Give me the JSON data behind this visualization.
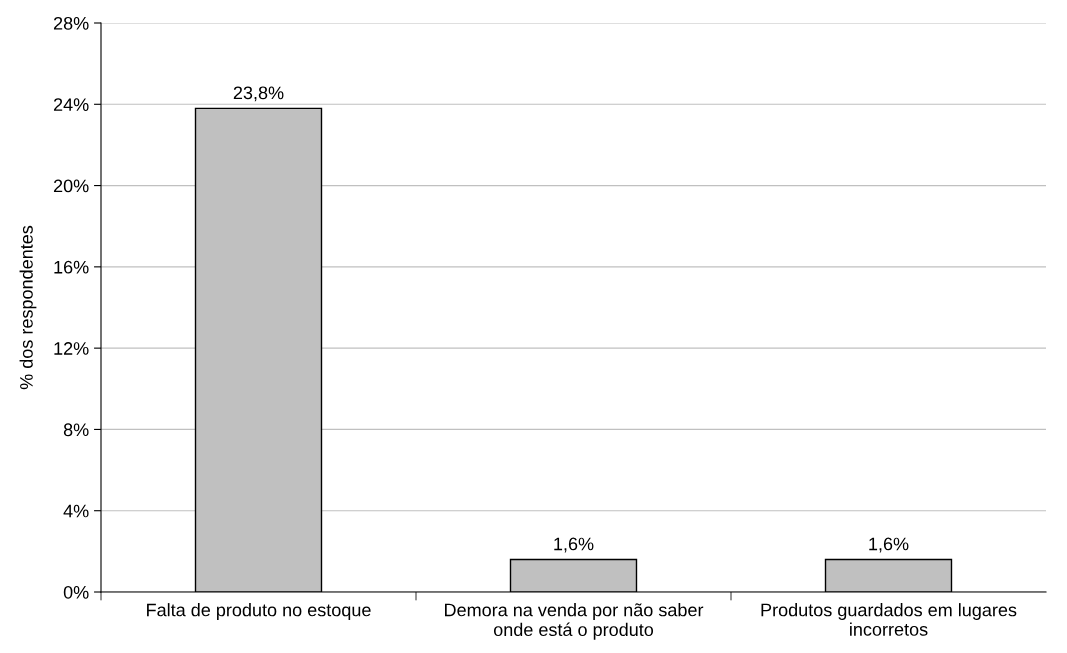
{
  "chart_data": {
    "type": "bar",
    "ylabel": "% dos respondentes",
    "categories": [
      "Falta de produto no estoque",
      "Demora na venda por não saber\nonde está o produto",
      "Produtos guardados em lugares\nincorretos"
    ],
    "values": [
      23.8,
      1.6,
      1.6
    ],
    "value_labels": [
      "23,8%",
      "1,6%",
      "1,6%"
    ],
    "color": "#c0c0c0",
    "ylim": [
      0,
      28
    ],
    "yticks": [
      {
        "value": 0,
        "label": "0%"
      },
      {
        "value": 4,
        "label": "4%"
      },
      {
        "value": 8,
        "label": "8%"
      },
      {
        "value": 12,
        "label": "12%"
      },
      {
        "value": 16,
        "label": "16%"
      },
      {
        "value": 20,
        "label": "20%"
      },
      {
        "value": 24,
        "label": "24%"
      },
      {
        "value": 28,
        "label": "28%"
      }
    ],
    "grid": "y"
  }
}
